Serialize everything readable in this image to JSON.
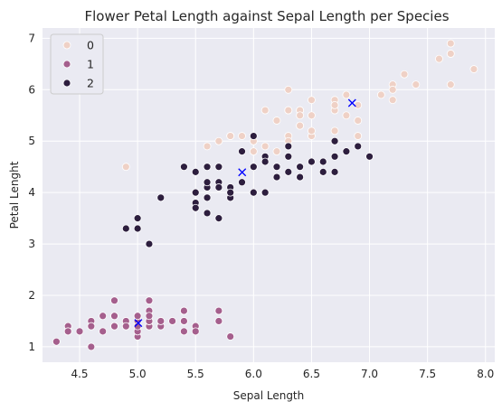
{
  "chart_data": {
    "type": "scatter",
    "title": "Flower Petal Length against Sepal Length per Species",
    "xlabel": "Sepal Length",
    "ylabel": "Petal Lenght",
    "xlim": [
      4.18,
      8.08
    ],
    "ylim": [
      0.7,
      7.2
    ],
    "xticks": [
      "4.5",
      "5.0",
      "5.5",
      "6.0",
      "6.5",
      "7.0",
      "7.5",
      "8.0"
    ],
    "yticks": [
      "1",
      "2",
      "3",
      "4",
      "5",
      "6",
      "7"
    ],
    "grid": true,
    "background_color": "#eaeaf2",
    "legend": {
      "placement": "upper-left",
      "title": ""
    },
    "series": [
      {
        "name": "0",
        "color": "#efd1c6",
        "x": [
          6.3,
          5.8,
          7.1,
          6.3,
          6.5,
          7.6,
          4.9,
          7.3,
          6.7,
          7.2,
          6.5,
          6.4,
          6.8,
          5.7,
          5.8,
          6.4,
          6.5,
          7.7,
          7.7,
          6.0,
          6.9,
          5.6,
          7.7,
          6.3,
          6.7,
          7.2,
          6.2,
          6.1,
          6.4,
          7.2,
          7.4,
          7.9,
          6.4,
          6.3,
          6.1,
          7.7,
          6.3,
          6.4,
          6.0,
          6.9,
          6.7,
          6.9,
          5.8,
          6.8,
          6.7,
          6.7,
          6.3,
          6.5,
          6.2,
          5.9
        ],
        "y": [
          6.0,
          5.1,
          5.9,
          5.6,
          5.8,
          6.6,
          4.5,
          6.3,
          5.8,
          6.1,
          5.1,
          5.3,
          5.5,
          5.0,
          5.1,
          5.3,
          5.5,
          6.7,
          6.9,
          5.0,
          5.7,
          4.9,
          6.7,
          4.9,
          5.7,
          6.0,
          4.8,
          4.9,
          5.6,
          5.8,
          6.1,
          6.4,
          5.6,
          5.1,
          5.6,
          6.1,
          5.6,
          5.5,
          4.8,
          5.4,
          5.6,
          5.1,
          5.1,
          5.9,
          5.7,
          5.2,
          5.0,
          5.2,
          5.4,
          5.1
        ]
      },
      {
        "name": "1",
        "color": "#a55f8d",
        "x": [
          5.1,
          4.9,
          4.7,
          4.6,
          5.0,
          5.4,
          4.6,
          5.0,
          4.4,
          4.9,
          5.4,
          4.8,
          4.8,
          4.3,
          5.8,
          5.7,
          5.4,
          5.1,
          5.7,
          5.1,
          5.4,
          5.1,
          4.6,
          5.1,
          4.8,
          5.0,
          5.0,
          5.2,
          5.2,
          4.7,
          4.8,
          5.4,
          5.2,
          5.5,
          4.9,
          5.0,
          5.5,
          4.9,
          4.4,
          5.1,
          5.0,
          4.5,
          4.4,
          5.0,
          5.1,
          4.8,
          5.1,
          4.6,
          5.3,
          5.0
        ],
        "y": [
          1.4,
          1.4,
          1.3,
          1.5,
          1.4,
          1.7,
          1.4,
          1.5,
          1.4,
          1.5,
          1.5,
          1.6,
          1.4,
          1.1,
          1.2,
          1.5,
          1.3,
          1.4,
          1.7,
          1.5,
          1.7,
          1.5,
          1.0,
          1.7,
          1.9,
          1.6,
          1.6,
          1.5,
          1.4,
          1.6,
          1.6,
          1.5,
          1.5,
          1.4,
          1.5,
          1.2,
          1.3,
          1.4,
          1.3,
          1.5,
          1.3,
          1.3,
          1.3,
          1.6,
          1.9,
          1.4,
          1.6,
          1.4,
          1.5,
          1.4
        ]
      },
      {
        "name": "2",
        "color": "#2d1e3e",
        "x": [
          7.0,
          6.4,
          6.9,
          5.5,
          6.5,
          5.7,
          6.3,
          4.9,
          6.6,
          5.2,
          5.0,
          5.9,
          6.0,
          6.1,
          5.6,
          6.7,
          5.6,
          5.8,
          6.2,
          5.6,
          5.9,
          6.1,
          6.3,
          6.1,
          6.4,
          6.6,
          6.8,
          6.7,
          6.0,
          5.7,
          5.5,
          5.5,
          5.8,
          6.0,
          5.4,
          6.0,
          6.7,
          6.3,
          5.6,
          5.5,
          5.5,
          6.1,
          5.8,
          5.0,
          5.6,
          5.7,
          5.7,
          6.2,
          5.1,
          5.7
        ],
        "y": [
          4.7,
          4.5,
          4.9,
          4.0,
          4.6,
          4.5,
          4.7,
          3.3,
          4.6,
          3.9,
          3.5,
          4.2,
          4.0,
          4.7,
          3.6,
          4.4,
          4.5,
          4.1,
          4.5,
          3.9,
          4.8,
          4.0,
          4.9,
          4.7,
          4.3,
          4.4,
          4.8,
          5.0,
          4.5,
          3.5,
          3.8,
          3.7,
          3.9,
          5.1,
          4.5,
          4.5,
          4.7,
          4.4,
          4.1,
          4.0,
          4.4,
          4.6,
          4.0,
          3.3,
          4.2,
          4.2,
          4.2,
          4.3,
          3.0,
          4.1
        ]
      }
    ],
    "centroids": {
      "color": "#0000ff",
      "marker": "x",
      "x": [
        6.85,
        5.006,
        5.9016
      ],
      "y": [
        5.742,
        1.462,
        4.3934
      ]
    }
  }
}
